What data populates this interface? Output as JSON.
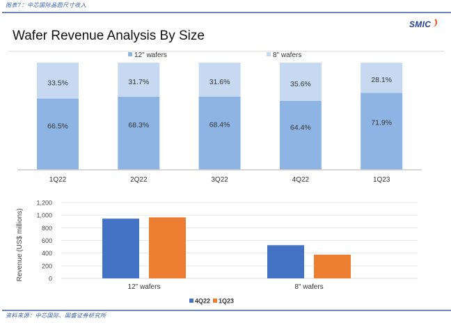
{
  "header": {
    "caption": "图表7：中芯国际晶圆尺寸收入",
    "title": "Wafer Revenue Analysis By Size",
    "logo": "SMIC"
  },
  "footer": {
    "source": "资料来源：中芯国际、国盛证券研究所"
  },
  "colors": {
    "wafer12": "#8eb4e3",
    "wafer8": "#c6d9f1",
    "q4_22": "#4472c4",
    "q1_23": "#ed7d31",
    "rule": "#4472c4"
  },
  "chart_data": [
    {
      "type": "bar",
      "stacked": true,
      "percent": true,
      "title": "Wafer Revenue Analysis By Size",
      "categories": [
        "1Q22",
        "2Q22",
        "3Q22",
        "4Q22",
        "1Q23"
      ],
      "series": [
        {
          "name": "12\" wafers",
          "values": [
            66.5,
            68.3,
            68.4,
            64.4,
            71.9
          ],
          "labels": [
            "66.5%",
            "68.3%",
            "68.4%",
            "64.4%",
            "71.9%"
          ]
        },
        {
          "name": "8\" wafers",
          "values": [
            33.5,
            31.7,
            31.6,
            35.6,
            28.1
          ],
          "labels": [
            "33.5%",
            "31.7%",
            "31.6%",
            "35.6%",
            "28.1%"
          ]
        }
      ],
      "legend": "top",
      "ylim": [
        0,
        100
      ],
      "grid": false
    },
    {
      "type": "bar",
      "categories": [
        "12\" wafers",
        "8\" wafers"
      ],
      "series": [
        {
          "name": "4Q22",
          "values": [
            945,
            525
          ]
        },
        {
          "name": "1Q23",
          "values": [
            965,
            375
          ]
        }
      ],
      "ylabel": "Revenue (US$ millions)",
      "xlabel": "",
      "ylim": [
        0,
        1200
      ],
      "yticks": [
        0,
        200,
        400,
        600,
        800,
        1000,
        1200
      ],
      "ytick_labels": [
        "0",
        "200",
        "400",
        "600",
        "800",
        "1,000",
        "1,200"
      ],
      "grid": true,
      "legend": "bottom"
    }
  ]
}
